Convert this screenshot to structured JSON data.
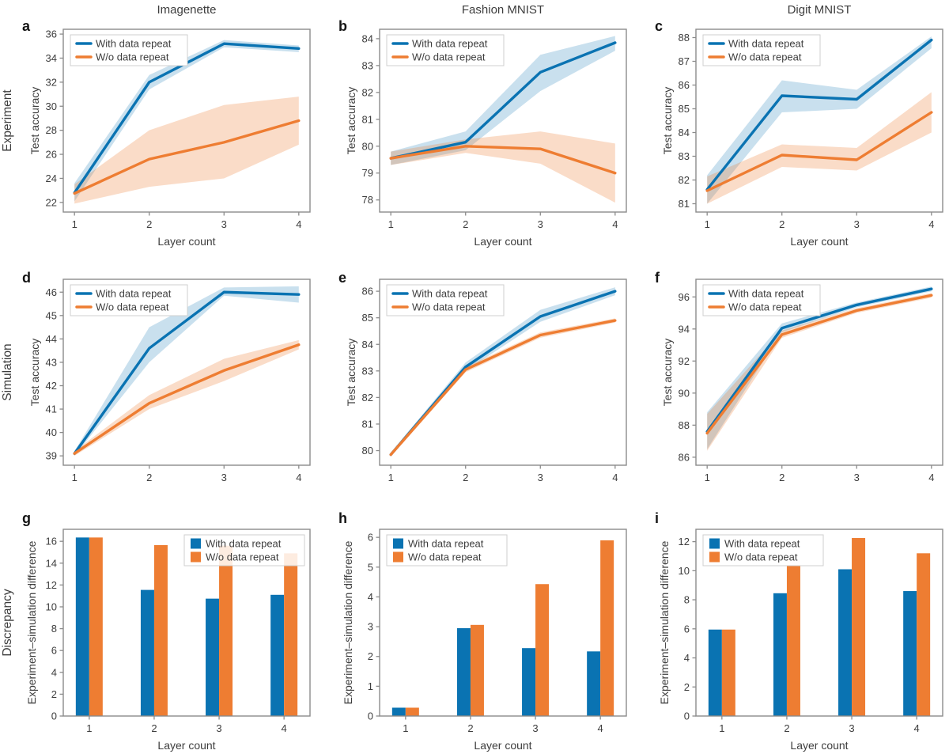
{
  "figure": {
    "column_titles": [
      "Imagenette",
      "Fashion MNIST",
      "Digit MNIST"
    ],
    "row_labels": [
      {
        "label": "Experiment",
        "color": "#2487d8"
      },
      {
        "label": "Simulation",
        "color": "#e93a96"
      },
      {
        "label": "Discrepancy",
        "color": "#d82b47"
      }
    ],
    "panel_letters": [
      "a",
      "b",
      "c",
      "d",
      "e",
      "f",
      "g",
      "h",
      "i"
    ],
    "legend_labels": [
      "With data repeat",
      "W/o data repeat"
    ],
    "colors": {
      "with_repeat": "#0a73b2",
      "without_repeat": "#ee7d32"
    },
    "xlabel": "Layer count",
    "accuracy_ylabel": "Test accuracy",
    "difference_ylabel": "Experiment–simulation difference"
  },
  "chart_data": [
    {
      "id": "a",
      "type": "line",
      "row": 0,
      "col": 0,
      "title": "Imagenette",
      "row_label": "Experiment",
      "xlabel": "Layer count",
      "ylabel": "Test accuracy",
      "x": [
        1,
        2,
        3,
        4
      ],
      "xticks": [
        1,
        2,
        3,
        4
      ],
      "ylim": [
        21.2,
        36.4
      ],
      "yticks": [
        22,
        24,
        26,
        28,
        30,
        32,
        34,
        36
      ],
      "legend_pos": "top-left",
      "series": [
        {
          "name": "With data repeat",
          "key": "with_repeat",
          "values": [
            22.8,
            32.0,
            35.2,
            34.8
          ],
          "band_lo": [
            22.1,
            31.4,
            34.9,
            34.5
          ],
          "band_hi": [
            23.6,
            32.6,
            35.5,
            35.05
          ]
        },
        {
          "name": "W/o data repeat",
          "key": "without_repeat",
          "values": [
            22.75,
            25.6,
            27.0,
            28.8
          ],
          "band_lo": [
            21.9,
            23.3,
            24.0,
            26.8
          ],
          "band_hi": [
            23.5,
            28.0,
            30.1,
            30.8
          ]
        }
      ]
    },
    {
      "id": "b",
      "type": "line",
      "row": 0,
      "col": 1,
      "title": "Fashion MNIST",
      "row_label": null,
      "xlabel": "Layer count",
      "ylabel": "Test accuracy",
      "x": [
        1,
        2,
        3,
        4
      ],
      "xticks": [
        1,
        2,
        3,
        4
      ],
      "ylim": [
        77.55,
        84.35
      ],
      "yticks": [
        78,
        79,
        80,
        81,
        82,
        83,
        84
      ],
      "legend_pos": "top-left",
      "series": [
        {
          "name": "With data repeat",
          "key": "with_repeat",
          "values": [
            79.55,
            80.15,
            82.75,
            83.85
          ],
          "band_lo": [
            79.3,
            79.85,
            82.05,
            83.55
          ],
          "band_hi": [
            79.8,
            80.55,
            83.4,
            84.1
          ]
        },
        {
          "name": "W/o data repeat",
          "key": "without_repeat",
          "values": [
            79.55,
            80.0,
            79.9,
            79.0
          ],
          "band_lo": [
            79.3,
            79.75,
            79.35,
            77.9
          ],
          "band_hi": [
            79.8,
            80.25,
            80.55,
            80.1
          ]
        }
      ]
    },
    {
      "id": "c",
      "type": "line",
      "row": 0,
      "col": 2,
      "title": "Digit MNIST",
      "row_label": null,
      "xlabel": "Layer count",
      "ylabel": "Test accuracy",
      "x": [
        1,
        2,
        3,
        4
      ],
      "xticks": [
        1,
        2,
        3,
        4
      ],
      "ylim": [
        80.65,
        88.35
      ],
      "yticks": [
        81,
        82,
        83,
        84,
        85,
        86,
        87,
        88
      ],
      "legend_pos": "top-left",
      "series": [
        {
          "name": "With data repeat",
          "key": "with_repeat",
          "values": [
            81.6,
            85.55,
            85.4,
            87.9
          ],
          "band_lo": [
            81.0,
            84.85,
            85.0,
            87.55
          ],
          "band_hi": [
            82.2,
            86.2,
            85.8,
            88.05
          ]
        },
        {
          "name": "W/o data repeat",
          "key": "without_repeat",
          "values": [
            81.55,
            83.05,
            82.85,
            84.85
          ],
          "band_lo": [
            81.0,
            82.55,
            82.4,
            84.0
          ],
          "band_hi": [
            82.15,
            83.5,
            83.35,
            85.7
          ]
        }
      ]
    },
    {
      "id": "d",
      "type": "line",
      "row": 1,
      "col": 0,
      "title": null,
      "row_label": "Simulation",
      "xlabel": "Layer count",
      "ylabel": "Test accuracy",
      "x": [
        1,
        2,
        3,
        4
      ],
      "xticks": [
        1,
        2,
        3,
        4
      ],
      "ylim": [
        38.6,
        46.55
      ],
      "yticks": [
        39,
        40,
        41,
        42,
        43,
        44,
        45,
        46
      ],
      "legend_pos": "top-left",
      "series": [
        {
          "name": "With data repeat",
          "key": "with_repeat",
          "values": [
            39.1,
            43.6,
            46.0,
            45.9
          ],
          "band_lo": [
            39.0,
            43.0,
            45.85,
            45.55
          ],
          "band_hi": [
            39.2,
            44.5,
            46.2,
            46.25
          ]
        },
        {
          "name": "W/o data repeat",
          "key": "without_repeat",
          "values": [
            39.1,
            41.25,
            42.65,
            43.75
          ],
          "band_lo": [
            39.0,
            41.0,
            42.2,
            43.55
          ],
          "band_hi": [
            39.2,
            41.6,
            43.15,
            43.95
          ]
        }
      ]
    },
    {
      "id": "e",
      "type": "line",
      "row": 1,
      "col": 1,
      "title": null,
      "row_label": null,
      "xlabel": "Layer count",
      "ylabel": "Test accuracy",
      "x": [
        1,
        2,
        3,
        4
      ],
      "xticks": [
        1,
        2,
        3,
        4
      ],
      "ylim": [
        79.45,
        86.45
      ],
      "yticks": [
        80,
        81,
        82,
        83,
        84,
        85,
        86
      ],
      "legend_pos": "top-left",
      "series": [
        {
          "name": "With data repeat",
          "key": "with_repeat",
          "values": [
            79.85,
            83.15,
            85.05,
            86.0
          ],
          "band_lo": [
            79.78,
            83.0,
            84.85,
            85.85
          ],
          "band_hi": [
            79.92,
            83.32,
            85.3,
            86.15
          ]
        },
        {
          "name": "W/o data repeat",
          "key": "without_repeat",
          "values": [
            79.85,
            83.05,
            84.35,
            84.9
          ],
          "band_lo": [
            79.78,
            82.95,
            84.25,
            84.82
          ],
          "band_hi": [
            79.92,
            83.15,
            84.45,
            84.98
          ]
        }
      ]
    },
    {
      "id": "f",
      "type": "line",
      "row": 1,
      "col": 2,
      "title": null,
      "row_label": null,
      "xlabel": "Layer count",
      "ylabel": "Test accuracy",
      "x": [
        1,
        2,
        3,
        4
      ],
      "xticks": [
        1,
        2,
        3,
        4
      ],
      "ylim": [
        85.5,
        97.1
      ],
      "yticks": [
        86,
        88,
        90,
        92,
        94,
        96
      ],
      "legend_pos": "top-left",
      "series": [
        {
          "name": "With data repeat",
          "key": "with_repeat",
          "values": [
            87.6,
            94.05,
            95.5,
            96.5
          ],
          "band_lo": [
            86.5,
            93.8,
            95.35,
            96.35
          ],
          "band_hi": [
            88.8,
            94.35,
            95.65,
            96.65
          ]
        },
        {
          "name": "W/o data repeat",
          "key": "without_repeat",
          "values": [
            87.5,
            93.65,
            95.15,
            96.1
          ],
          "band_lo": [
            86.4,
            93.45,
            95.0,
            95.95
          ],
          "band_hi": [
            88.7,
            93.9,
            95.3,
            96.25
          ]
        }
      ]
    },
    {
      "id": "g",
      "type": "bar",
      "row": 2,
      "col": 0,
      "title": null,
      "row_label": "Discrepancy",
      "xlabel": "Layer count",
      "ylabel": "Experiment–simulation difference",
      "x": [
        1,
        2,
        3,
        4
      ],
      "xticks": [
        1,
        2,
        3,
        4
      ],
      "ylim": [
        0,
        17.1
      ],
      "yticks": [
        0,
        2,
        4,
        6,
        8,
        10,
        12,
        14,
        16
      ],
      "legend_pos": "top-right",
      "series": [
        {
          "name": "With data repeat",
          "key": "with_repeat",
          "values": [
            16.35,
            11.55,
            10.75,
            11.1
          ]
        },
        {
          "name": "W/o data repeat",
          "key": "without_repeat",
          "values": [
            16.35,
            15.65,
            15.6,
            14.9
          ]
        }
      ]
    },
    {
      "id": "h",
      "type": "bar",
      "row": 2,
      "col": 1,
      "title": null,
      "row_label": null,
      "xlabel": "Layer count",
      "ylabel": "Experiment–simulation difference",
      "x": [
        1,
        2,
        3,
        4
      ],
      "xticks": [
        1,
        2,
        3,
        4
      ],
      "ylim": [
        0,
        6.27
      ],
      "yticks": [
        0,
        1,
        2,
        3,
        4,
        5,
        6
      ],
      "legend_pos": "top-left",
      "series": [
        {
          "name": "With data repeat",
          "key": "with_repeat",
          "values": [
            0.28,
            2.95,
            2.28,
            2.17
          ]
        },
        {
          "name": "W/o data repeat",
          "key": "without_repeat",
          "values": [
            0.28,
            3.06,
            4.43,
            5.9
          ]
        }
      ]
    },
    {
      "id": "i",
      "type": "bar",
      "row": 2,
      "col": 2,
      "title": null,
      "row_label": null,
      "xlabel": "Layer count",
      "ylabel": "Experiment–simulation difference",
      "x": [
        1,
        2,
        3,
        4
      ],
      "xticks": [
        1,
        2,
        3,
        4
      ],
      "ylim": [
        0,
        12.85
      ],
      "yticks": [
        0,
        2,
        4,
        6,
        8,
        10,
        12
      ],
      "legend_pos": "top-left",
      "series": [
        {
          "name": "With data repeat",
          "key": "with_repeat",
          "values": [
            5.95,
            8.45,
            10.1,
            8.6
          ]
        },
        {
          "name": "W/o data repeat",
          "key": "without_repeat",
          "values": [
            5.95,
            10.65,
            12.25,
            11.2
          ]
        }
      ]
    }
  ]
}
